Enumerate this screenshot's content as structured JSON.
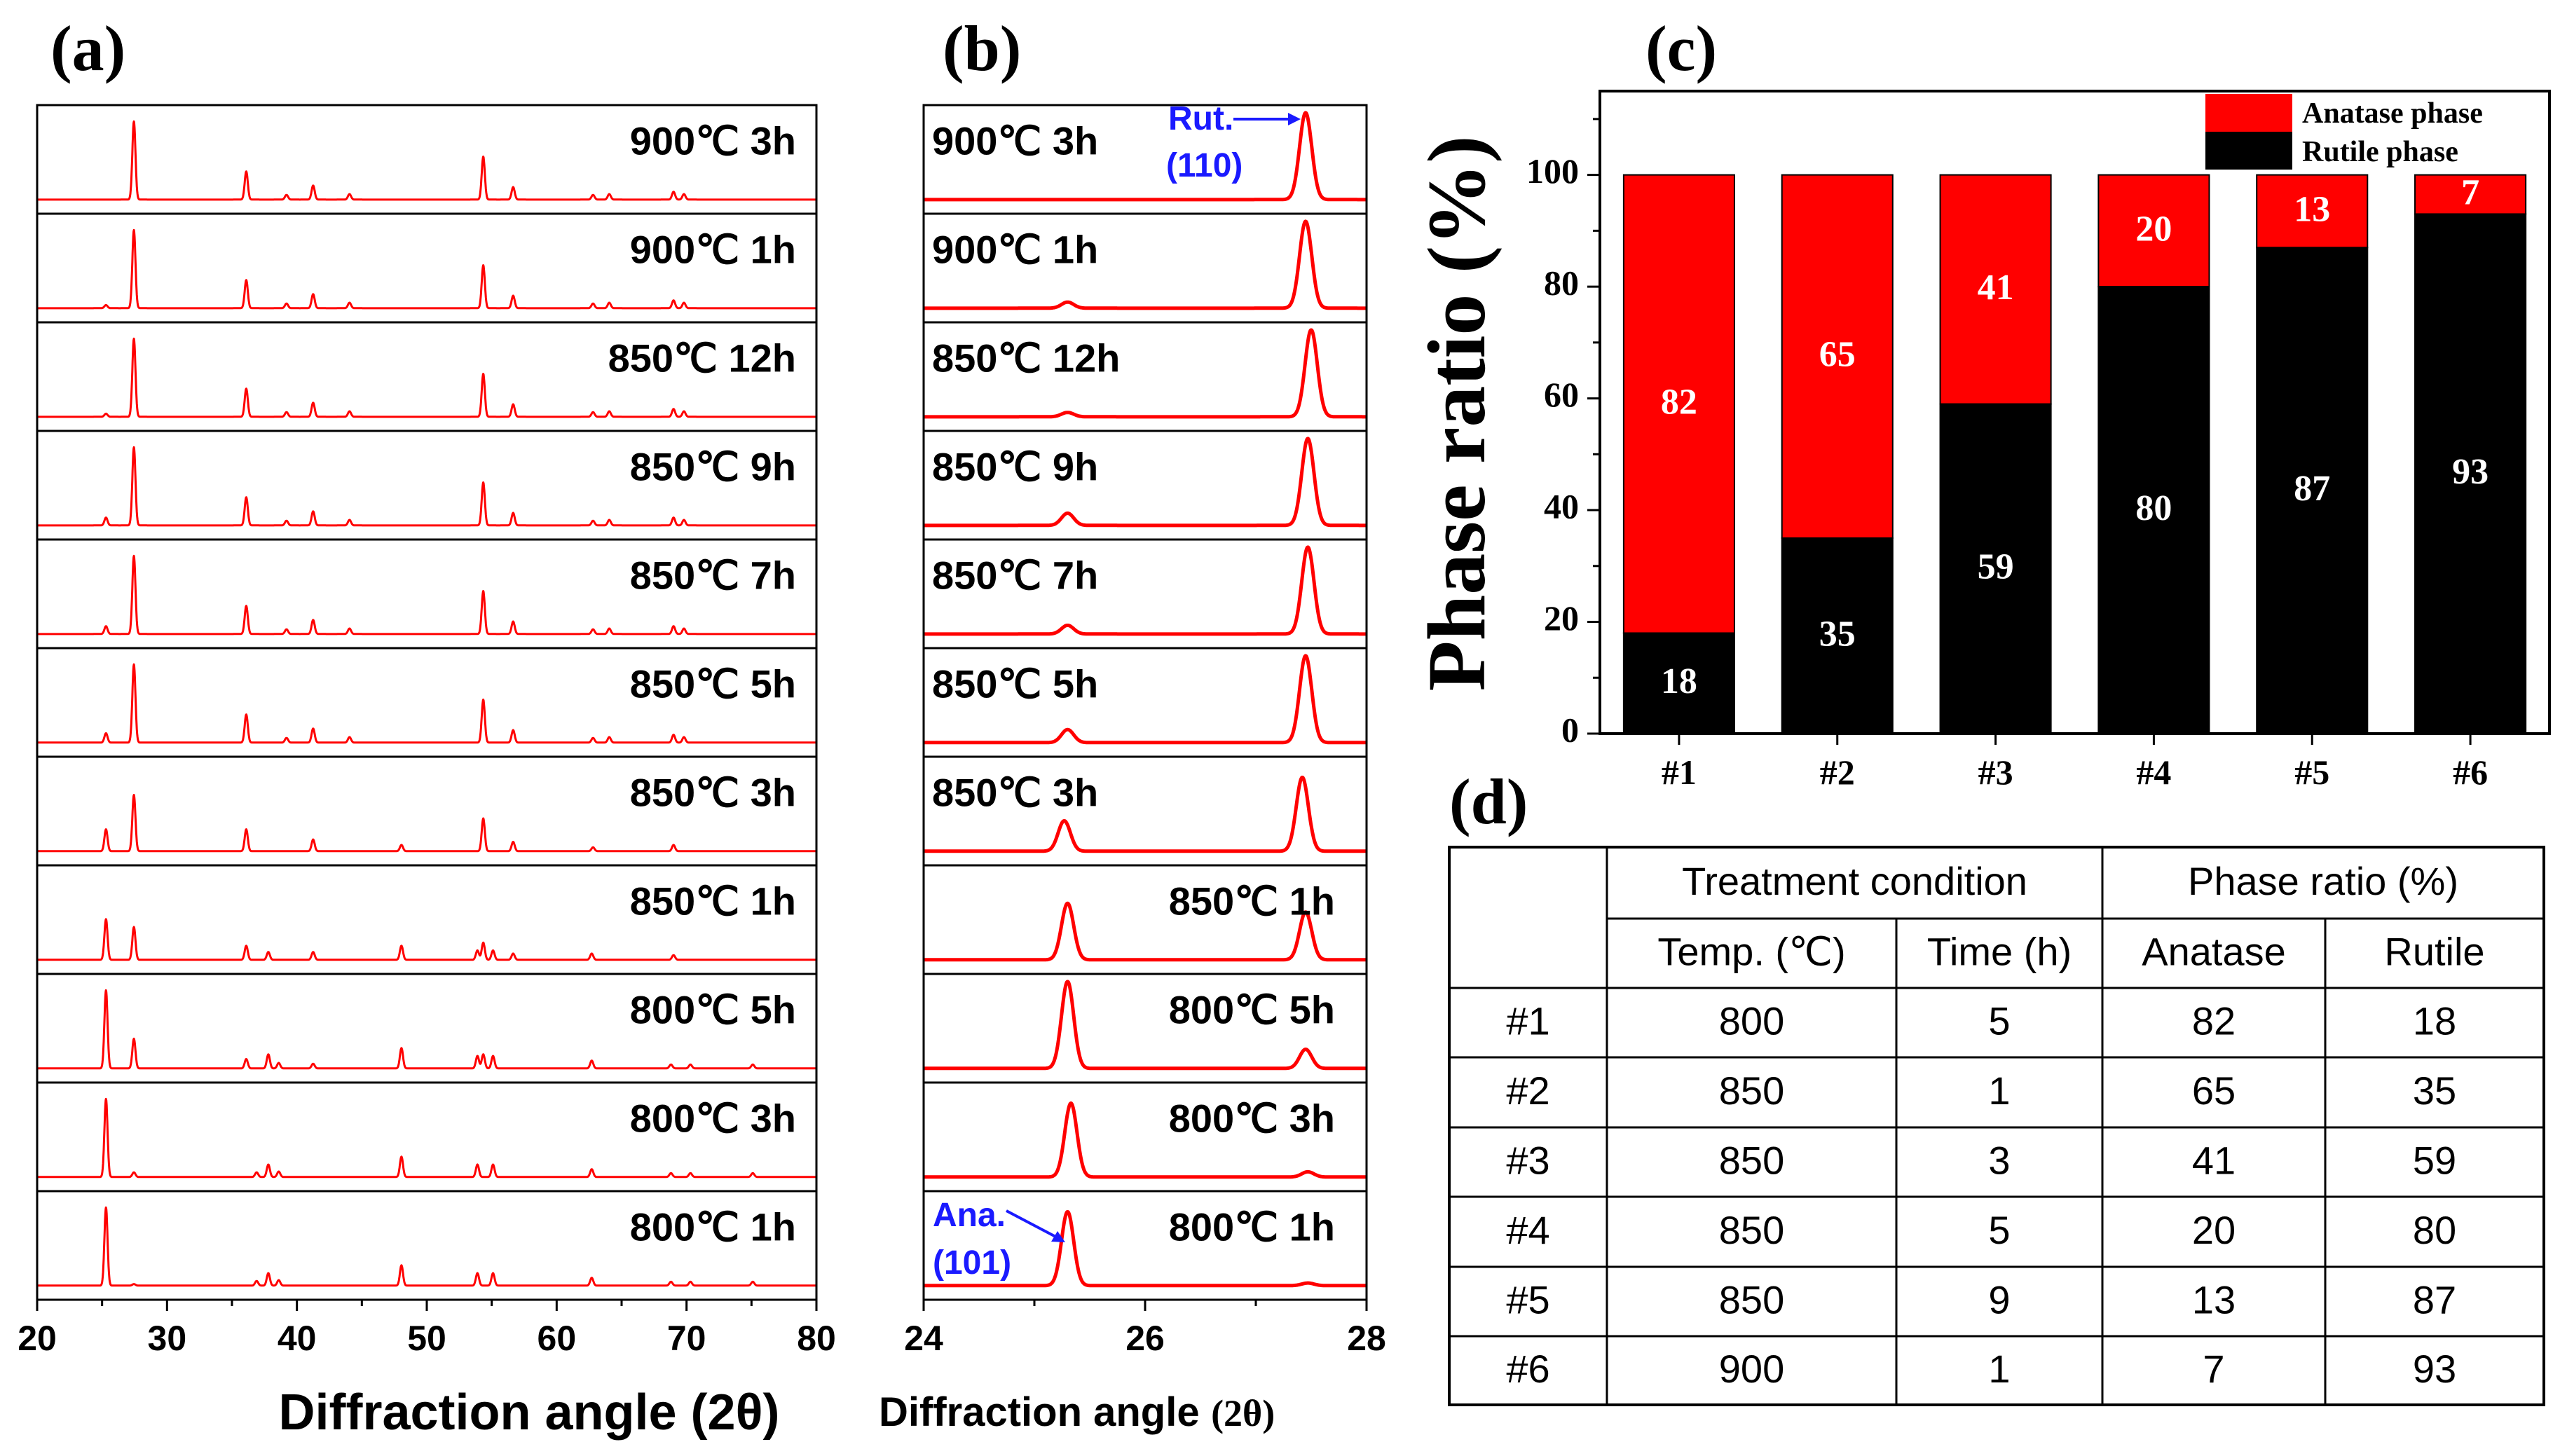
{
  "panels": {
    "a": "(a)",
    "b": "(b)",
    "c": "(c)",
    "d": "(d)"
  },
  "colors": {
    "trace": "#ff0000",
    "anatase": "#ff0000",
    "rutile": "#000000",
    "annotation": "#1a1aff"
  },
  "chart_data": [
    {
      "id": "a",
      "type": "line",
      "title": "",
      "xlabel": "Diffraction angle (2θ)",
      "ylabel": "",
      "xlim": [
        20,
        80
      ],
      "xticks": [
        "20",
        "30",
        "40",
        "50",
        "60",
        "70",
        "80"
      ],
      "series": [
        {
          "name": "900℃ 3h",
          "peaks": [
            [
              25.3,
              0.0
            ],
            [
              27.45,
              1.0
            ],
            [
              36.1,
              0.36
            ],
            [
              39.2,
              0.06
            ],
            [
              41.25,
              0.18
            ],
            [
              44.05,
              0.07
            ],
            [
              54.35,
              0.55
            ],
            [
              56.65,
              0.16
            ],
            [
              62.8,
              0.06
            ],
            [
              64.05,
              0.07
            ],
            [
              69.0,
              0.1
            ],
            [
              69.8,
              0.07
            ]
          ]
        },
        {
          "name": "900℃ 1h",
          "peaks": [
            [
              25.3,
              0.04
            ],
            [
              27.45,
              1.0
            ],
            [
              36.1,
              0.36
            ],
            [
              39.2,
              0.06
            ],
            [
              41.25,
              0.18
            ],
            [
              44.05,
              0.07
            ],
            [
              54.35,
              0.55
            ],
            [
              56.65,
              0.16
            ],
            [
              62.8,
              0.06
            ],
            [
              64.05,
              0.07
            ],
            [
              69.0,
              0.1
            ],
            [
              69.8,
              0.07
            ]
          ]
        },
        {
          "name": "850℃ 12h",
          "peaks": [
            [
              25.3,
              0.04
            ],
            [
              27.45,
              1.0
            ],
            [
              36.1,
              0.36
            ],
            [
              39.2,
              0.06
            ],
            [
              41.25,
              0.18
            ],
            [
              44.05,
              0.07
            ],
            [
              54.35,
              0.55
            ],
            [
              56.65,
              0.16
            ],
            [
              62.8,
              0.06
            ],
            [
              64.05,
              0.07
            ],
            [
              69.0,
              0.1
            ],
            [
              69.8,
              0.07
            ]
          ]
        },
        {
          "name": "850℃ 9h",
          "peaks": [
            [
              25.3,
              0.1
            ],
            [
              27.45,
              1.0
            ],
            [
              36.1,
              0.36
            ],
            [
              39.2,
              0.06
            ],
            [
              41.25,
              0.18
            ],
            [
              44.05,
              0.07
            ],
            [
              54.35,
              0.55
            ],
            [
              56.65,
              0.16
            ],
            [
              62.8,
              0.06
            ],
            [
              64.05,
              0.07
            ],
            [
              69.0,
              0.1
            ],
            [
              69.8,
              0.07
            ]
          ]
        },
        {
          "name": "850℃ 7h",
          "peaks": [
            [
              25.3,
              0.1
            ],
            [
              27.45,
              1.0
            ],
            [
              36.1,
              0.36
            ],
            [
              39.2,
              0.06
            ],
            [
              41.25,
              0.18
            ],
            [
              44.05,
              0.07
            ],
            [
              54.35,
              0.55
            ],
            [
              56.65,
              0.16
            ],
            [
              62.8,
              0.06
            ],
            [
              64.05,
              0.07
            ],
            [
              69.0,
              0.1
            ],
            [
              69.8,
              0.07
            ]
          ]
        },
        {
          "name": "850℃ 5h",
          "peaks": [
            [
              25.3,
              0.12
            ],
            [
              27.45,
              1.0
            ],
            [
              36.1,
              0.36
            ],
            [
              39.2,
              0.06
            ],
            [
              41.25,
              0.18
            ],
            [
              44.05,
              0.07
            ],
            [
              54.35,
              0.55
            ],
            [
              56.65,
              0.16
            ],
            [
              62.8,
              0.06
            ],
            [
              64.05,
              0.07
            ],
            [
              69.0,
              0.1
            ],
            [
              69.8,
              0.07
            ]
          ]
        },
        {
          "name": "850℃ 3h",
          "peaks": [
            [
              25.3,
              0.28
            ],
            [
              27.45,
              0.72
            ],
            [
              36.1,
              0.28
            ],
            [
              41.25,
              0.15
            ],
            [
              48.05,
              0.08
            ],
            [
              54.35,
              0.42
            ],
            [
              56.65,
              0.12
            ],
            [
              62.8,
              0.05
            ],
            [
              69.0,
              0.08
            ]
          ]
        },
        {
          "name": "850℃ 1h",
          "peaks": [
            [
              25.3,
              0.52
            ],
            [
              27.45,
              0.42
            ],
            [
              36.1,
              0.18
            ],
            [
              37.8,
              0.1
            ],
            [
              41.25,
              0.1
            ],
            [
              48.05,
              0.18
            ],
            [
              53.9,
              0.12
            ],
            [
              54.35,
              0.22
            ],
            [
              55.1,
              0.12
            ],
            [
              56.65,
              0.08
            ],
            [
              62.7,
              0.08
            ],
            [
              69.0,
              0.06
            ]
          ]
        },
        {
          "name": "800℃ 5h",
          "peaks": [
            [
              25.3,
              1.0
            ],
            [
              27.45,
              0.38
            ],
            [
              36.1,
              0.12
            ],
            [
              37.8,
              0.18
            ],
            [
              38.6,
              0.07
            ],
            [
              41.25,
              0.06
            ],
            [
              48.05,
              0.26
            ],
            [
              53.9,
              0.16
            ],
            [
              54.35,
              0.18
            ],
            [
              55.1,
              0.16
            ],
            [
              62.7,
              0.1
            ],
            [
              68.8,
              0.05
            ],
            [
              70.3,
              0.05
            ],
            [
              75.1,
              0.05
            ]
          ]
        },
        {
          "name": "800℃ 3h",
          "peaks": [
            [
              25.3,
              1.0
            ],
            [
              27.45,
              0.06
            ],
            [
              36.9,
              0.06
            ],
            [
              37.8,
              0.16
            ],
            [
              38.6,
              0.07
            ],
            [
              48.05,
              0.26
            ],
            [
              53.9,
              0.16
            ],
            [
              55.1,
              0.16
            ],
            [
              62.7,
              0.1
            ],
            [
              68.8,
              0.05
            ],
            [
              70.3,
              0.05
            ],
            [
              75.1,
              0.05
            ]
          ]
        },
        {
          "name": "800℃ 1h",
          "peaks": [
            [
              25.3,
              1.0
            ],
            [
              27.45,
              0.02
            ],
            [
              36.9,
              0.06
            ],
            [
              37.8,
              0.16
            ],
            [
              38.6,
              0.07
            ],
            [
              48.05,
              0.26
            ],
            [
              53.9,
              0.16
            ],
            [
              55.1,
              0.16
            ],
            [
              62.7,
              0.1
            ],
            [
              68.8,
              0.05
            ],
            [
              70.3,
              0.05
            ],
            [
              75.1,
              0.05
            ]
          ]
        }
      ]
    },
    {
      "id": "b",
      "type": "line",
      "title": "",
      "xlabel": "Diffraction angle",
      "xlabel_suffix": "(2θ)",
      "ylabel": "",
      "xlim": [
        24,
        28
      ],
      "xticks": [
        "24",
        "26",
        "28"
      ],
      "annotations": [
        {
          "label": "Rut.",
          "sub": "(110)",
          "x": 27.45
        },
        {
          "label": "Ana.",
          "sub": "(101)",
          "x": 25.3
        }
      ],
      "series": [
        {
          "name": "900℃ 3h",
          "peaks": [
            [
              25.3,
              0.0
            ],
            [
              27.45,
              1.0
            ]
          ]
        },
        {
          "name": "900℃ 1h",
          "peaks": [
            [
              25.3,
              0.07
            ],
            [
              27.45,
              1.0
            ]
          ]
        },
        {
          "name": "850℃ 12h",
          "peaks": [
            [
              25.3,
              0.05
            ],
            [
              27.5,
              1.0
            ]
          ]
        },
        {
          "name": "850℃ 9h",
          "peaks": [
            [
              25.3,
              0.14
            ],
            [
              27.47,
              1.0
            ]
          ]
        },
        {
          "name": "850℃ 7h",
          "peaks": [
            [
              25.3,
              0.1
            ],
            [
              27.47,
              1.0
            ]
          ]
        },
        {
          "name": "850℃ 5h",
          "peaks": [
            [
              25.3,
              0.15
            ],
            [
              27.45,
              1.0
            ]
          ]
        },
        {
          "name": "850℃ 3h",
          "peaks": [
            [
              25.27,
              0.35
            ],
            [
              27.42,
              0.85
            ]
          ]
        },
        {
          "name": "850℃ 1h",
          "peaks": [
            [
              25.3,
              0.65
            ],
            [
              27.45,
              0.55
            ]
          ]
        },
        {
          "name": "800℃ 5h",
          "peaks": [
            [
              25.3,
              1.0
            ],
            [
              27.45,
              0.22
            ]
          ]
        },
        {
          "name": "800℃ 3h",
          "peaks": [
            [
              25.33,
              0.85
            ],
            [
              27.47,
              0.06
            ]
          ]
        },
        {
          "name": "800℃ 1h",
          "peaks": [
            [
              25.3,
              0.85
            ],
            [
              27.47,
              0.03
            ]
          ]
        }
      ]
    },
    {
      "id": "c",
      "type": "bar",
      "stacked": true,
      "title": "",
      "xlabel": "",
      "ylabel": "Phase ratio (%)",
      "ylim": [
        0,
        115
      ],
      "yticks": [
        0,
        20,
        40,
        60,
        80,
        100
      ],
      "categories": [
        "#1",
        "#2",
        "#3",
        "#4",
        "#5",
        "#6"
      ],
      "series": [
        {
          "name": "Rutile phase",
          "values": [
            18,
            35,
            59,
            80,
            87,
            93
          ]
        },
        {
          "name": "Anatase phase",
          "values": [
            82,
            65,
            41,
            20,
            13,
            7
          ]
        }
      ],
      "legend": [
        "Anatase phase",
        "Rutile phase"
      ],
      "legend_position": "top-right"
    }
  ],
  "table": {
    "group_headers": [
      "Treatment condition",
      "Phase ratio (%)"
    ],
    "sub_headers": [
      "Temp. (℃)",
      "Time (h)",
      "Anatase",
      "Rutile"
    ],
    "rows": [
      [
        "#1",
        "800",
        "5",
        "82",
        "18"
      ],
      [
        "#2",
        "850",
        "1",
        "65",
        "35"
      ],
      [
        "#3",
        "850",
        "3",
        "41",
        "59"
      ],
      [
        "#4",
        "850",
        "5",
        "20",
        "80"
      ],
      [
        "#5",
        "850",
        "9",
        "13",
        "87"
      ],
      [
        "#6",
        "900",
        "1",
        "7",
        "93"
      ]
    ]
  }
}
